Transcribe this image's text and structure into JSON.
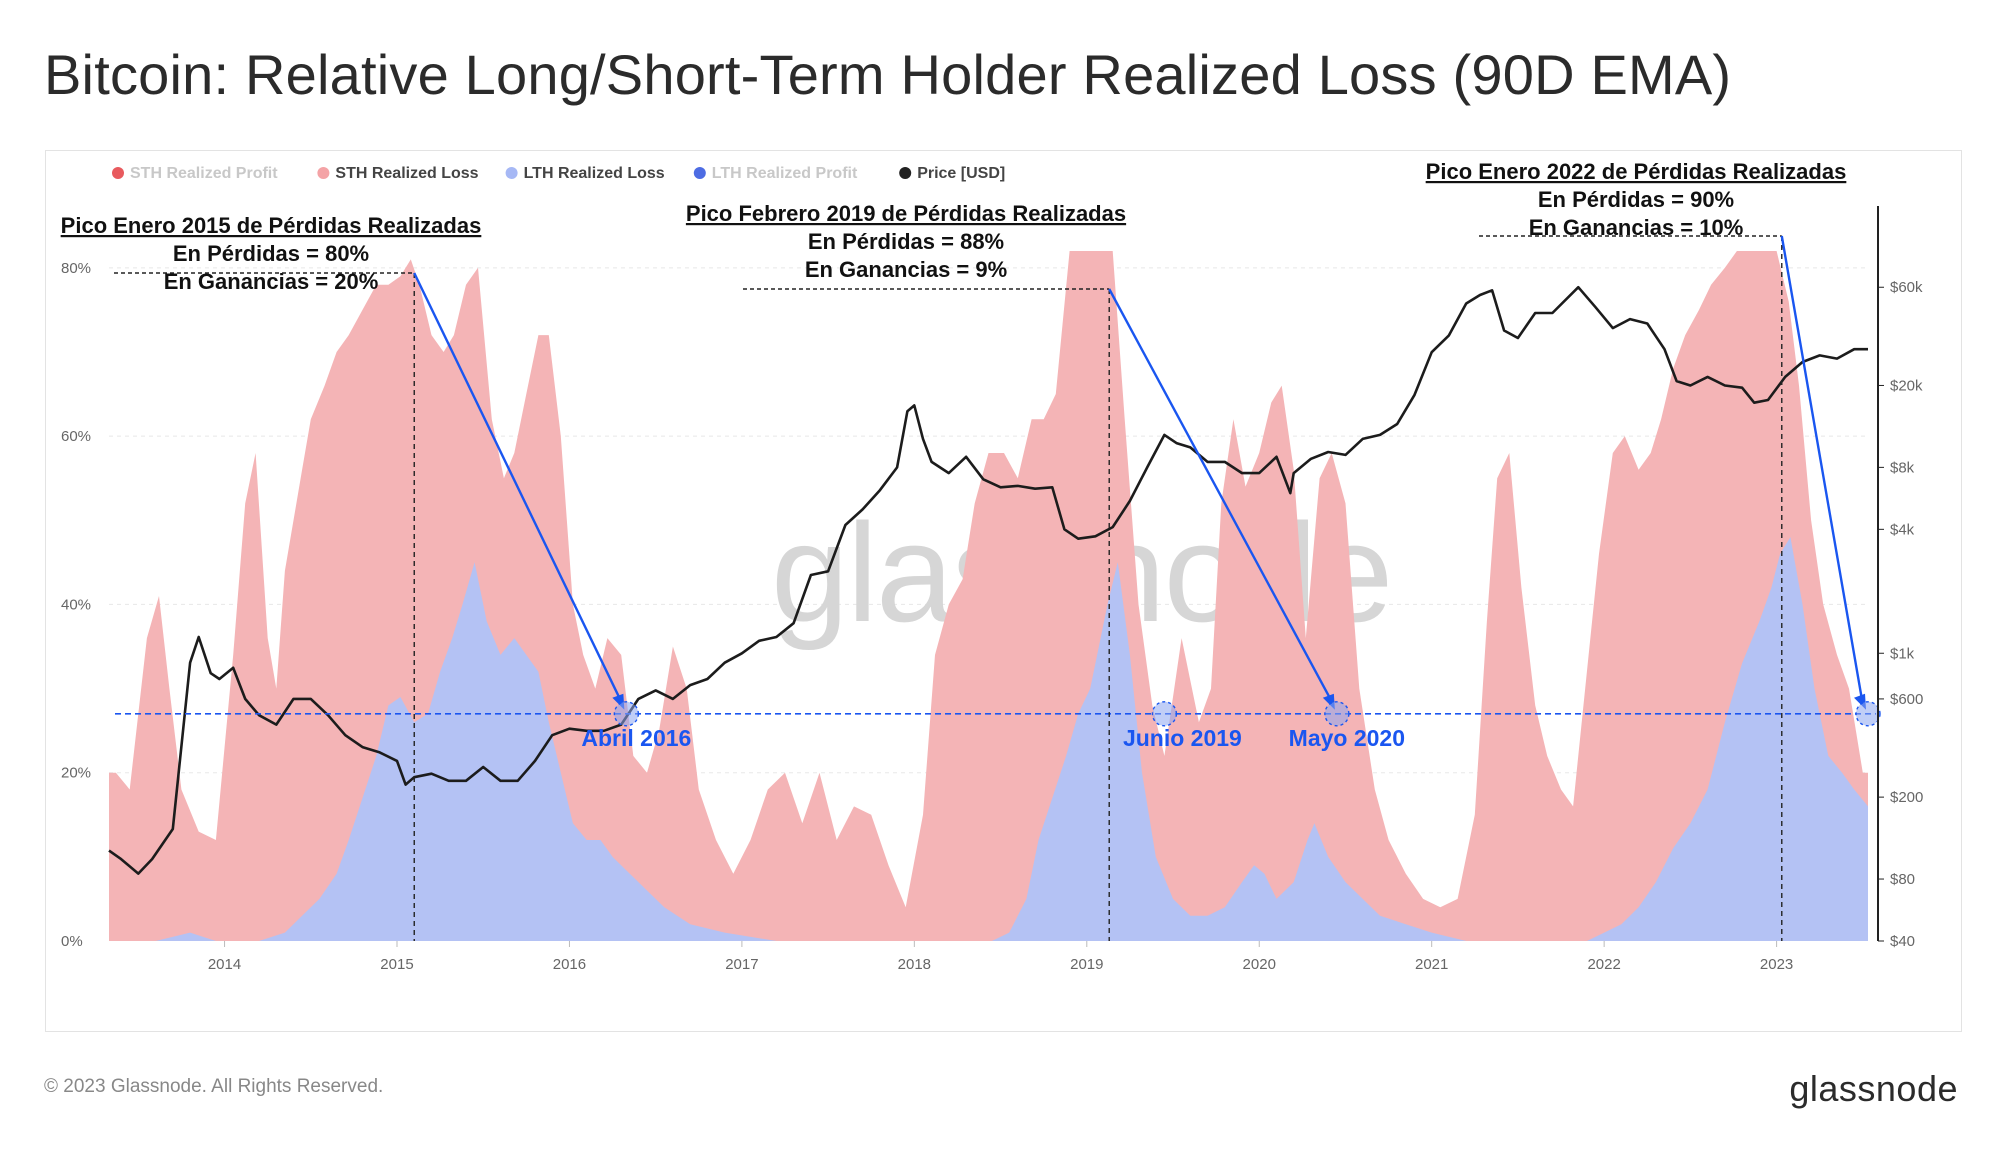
{
  "title": "Bitcoin: Relative Long/Short-Term Holder Realized Loss (90D EMA)",
  "footer": "© 2023 Glassnode. All Rights Reserved.",
  "brand": "glassnode",
  "watermark": "glassnode",
  "colors": {
    "sth_loss": "#f4b4b6",
    "lth_loss": "#b4c2f4",
    "price": "#1c1c1c",
    "annotation_arrow": "#1a56f0"
  },
  "chart_data": {
    "type": "area",
    "legend": [
      {
        "name": "STH Realized Profit",
        "color": "#e5484d",
        "active": false
      },
      {
        "name": "STH Realized Loss",
        "color": "#f4a3a6",
        "active": true
      },
      {
        "name": "LTH Realized Loss",
        "color": "#a6b8f5",
        "active": true
      },
      {
        "name": "LTH Realized Profit",
        "color": "#3a5ce0",
        "active": false
      },
      {
        "name": "Price [USD]",
        "color": "#222222",
        "active": true
      }
    ],
    "x_ticks": [
      "2014",
      "2015",
      "2016",
      "2017",
      "2018",
      "2019",
      "2020",
      "2021",
      "2022",
      "2023"
    ],
    "x_range": [
      2013.33,
      2023.53
    ],
    "y_left": {
      "ticks": [
        "0%",
        "20%",
        "40%",
        "60%",
        "80%"
      ],
      "range": [
        0,
        0.82
      ]
    },
    "y_right": {
      "ticks": [
        "$40",
        "$80",
        "$200",
        "$600",
        "$1k",
        "$4k",
        "$8k",
        "$20k",
        "$60k"
      ],
      "scale": "log",
      "range": [
        40,
        90000
      ]
    },
    "series": [
      {
        "name": "STH Realized Loss",
        "x": [
          2013.33,
          2013.37,
          2013.45,
          2013.55,
          2013.62,
          2013.68,
          2013.75,
          2013.85,
          2013.95,
          2014.05,
          2014.12,
          2014.18,
          2014.25,
          2014.3,
          2014.35,
          2014.4,
          2014.45,
          2014.5,
          2014.58,
          2014.65,
          2014.72,
          2014.8,
          2014.88,
          2014.95,
          2015.02,
          2015.08,
          2015.13,
          2015.2,
          2015.27,
          2015.33,
          2015.4,
          2015.47,
          2015.55,
          2015.62,
          2015.68,
          2015.75,
          2015.82,
          2015.88,
          2015.95,
          2016.02,
          2016.08,
          2016.15,
          2016.22,
          2016.3,
          2016.37,
          2016.45,
          2016.52,
          2016.6,
          2016.68,
          2016.75,
          2016.85,
          2016.95,
          2017.05,
          2017.15,
          2017.25,
          2017.35,
          2017.45,
          2017.55,
          2017.65,
          2017.75,
          2017.85,
          2017.95,
          2018.05,
          2018.12,
          2018.2,
          2018.28,
          2018.35,
          2018.43,
          2018.52,
          2018.6,
          2018.68,
          2018.75,
          2018.82,
          2018.9,
          2018.97,
          2019.03,
          2019.1,
          2019.15,
          2019.22,
          2019.3,
          2019.38,
          2019.45,
          2019.55,
          2019.65,
          2019.72,
          2019.78,
          2019.85,
          2019.92,
          2020.0,
          2020.07,
          2020.13,
          2020.2,
          2020.27,
          2020.35,
          2020.42,
          2020.5,
          2020.58,
          2020.67,
          2020.75,
          2020.85,
          2020.95,
          2021.05,
          2021.15,
          2021.25,
          2021.32,
          2021.38,
          2021.45,
          2021.52,
          2021.6,
          2021.67,
          2021.75,
          2021.82,
          2021.9,
          2021.97,
          2022.05,
          2022.12,
          2022.2,
          2022.27,
          2022.33,
          2022.4,
          2022.47,
          2022.55,
          2022.62,
          2022.7,
          2022.77,
          2022.85,
          2022.93,
          2023.0,
          2023.07,
          2023.13,
          2023.2,
          2023.27,
          2023.35,
          2023.42,
          2023.5,
          2023.53
        ],
        "values": [
          0.2,
          0.2,
          0.18,
          0.36,
          0.41,
          0.3,
          0.18,
          0.13,
          0.12,
          0.34,
          0.52,
          0.58,
          0.36,
          0.3,
          0.44,
          0.5,
          0.56,
          0.62,
          0.66,
          0.7,
          0.72,
          0.75,
          0.78,
          0.78,
          0.79,
          0.81,
          0.78,
          0.72,
          0.7,
          0.72,
          0.78,
          0.8,
          0.62,
          0.55,
          0.58,
          0.65,
          0.72,
          0.72,
          0.6,
          0.4,
          0.34,
          0.3,
          0.36,
          0.34,
          0.22,
          0.2,
          0.25,
          0.35,
          0.3,
          0.18,
          0.12,
          0.08,
          0.12,
          0.18,
          0.2,
          0.14,
          0.2,
          0.12,
          0.16,
          0.15,
          0.09,
          0.04,
          0.15,
          0.34,
          0.4,
          0.43,
          0.52,
          0.58,
          0.58,
          0.55,
          0.62,
          0.62,
          0.65,
          0.82,
          0.85,
          0.88,
          0.87,
          0.84,
          0.62,
          0.4,
          0.28,
          0.22,
          0.36,
          0.26,
          0.3,
          0.52,
          0.62,
          0.54,
          0.58,
          0.64,
          0.66,
          0.56,
          0.36,
          0.55,
          0.58,
          0.52,
          0.3,
          0.18,
          0.12,
          0.08,
          0.05,
          0.04,
          0.05,
          0.15,
          0.38,
          0.55,
          0.58,
          0.42,
          0.28,
          0.22,
          0.18,
          0.16,
          0.32,
          0.46,
          0.58,
          0.6,
          0.56,
          0.58,
          0.62,
          0.68,
          0.72,
          0.75,
          0.78,
          0.8,
          0.85,
          0.88,
          0.9,
          0.86,
          0.76,
          0.66,
          0.5,
          0.4,
          0.34,
          0.3,
          0.2,
          0.2
        ]
      },
      {
        "name": "LTH Realized Loss",
        "x": [
          2013.33,
          2013.6,
          2013.8,
          2013.95,
          2014.2,
          2014.35,
          2014.45,
          2014.55,
          2014.65,
          2014.72,
          2014.8,
          2014.88,
          2014.95,
          2015.02,
          2015.1,
          2015.18,
          2015.25,
          2015.32,
          2015.38,
          2015.45,
          2015.52,
          2015.6,
          2015.68,
          2015.75,
          2015.82,
          2015.88,
          2015.95,
          2016.02,
          2016.1,
          2016.18,
          2016.25,
          2016.35,
          2016.45,
          2016.55,
          2016.7,
          2016.9,
          2017.2,
          2017.5,
          2017.8,
          2018.1,
          2018.25,
          2018.35,
          2018.45,
          2018.55,
          2018.65,
          2018.72,
          2018.8,
          2018.88,
          2018.95,
          2019.02,
          2019.08,
          2019.12,
          2019.18,
          2019.25,
          2019.32,
          2019.4,
          2019.5,
          2019.6,
          2019.7,
          2019.8,
          2019.9,
          2019.97,
          2020.03,
          2020.1,
          2020.2,
          2020.28,
          2020.32,
          2020.4,
          2020.5,
          2020.6,
          2020.7,
          2020.85,
          2021.0,
          2021.2,
          2021.4,
          2021.6,
          2021.75,
          2021.9,
          2022.0,
          2022.1,
          2022.2,
          2022.3,
          2022.4,
          2022.5,
          2022.6,
          2022.7,
          2022.8,
          2022.9,
          2022.97,
          2023.02,
          2023.08,
          2023.15,
          2023.22,
          2023.3,
          2023.38,
          2023.45,
          2023.53
        ],
        "values": [
          0.0,
          0.0,
          0.01,
          0.0,
          0.0,
          0.01,
          0.03,
          0.05,
          0.08,
          0.12,
          0.17,
          0.22,
          0.28,
          0.29,
          0.26,
          0.27,
          0.32,
          0.36,
          0.4,
          0.45,
          0.38,
          0.34,
          0.36,
          0.34,
          0.32,
          0.26,
          0.2,
          0.14,
          0.12,
          0.12,
          0.1,
          0.08,
          0.06,
          0.04,
          0.02,
          0.01,
          0.0,
          0.0,
          0.0,
          0.0,
          0.0,
          0.0,
          0.0,
          0.01,
          0.05,
          0.12,
          0.17,
          0.22,
          0.27,
          0.3,
          0.36,
          0.4,
          0.45,
          0.34,
          0.2,
          0.1,
          0.05,
          0.03,
          0.03,
          0.04,
          0.07,
          0.09,
          0.08,
          0.05,
          0.07,
          0.12,
          0.14,
          0.1,
          0.07,
          0.05,
          0.03,
          0.02,
          0.01,
          0.0,
          0.0,
          0.0,
          0.0,
          0.0,
          0.01,
          0.02,
          0.04,
          0.07,
          0.11,
          0.14,
          0.18,
          0.26,
          0.33,
          0.38,
          0.42,
          0.46,
          0.48,
          0.4,
          0.3,
          0.22,
          0.2,
          0.18,
          0.16
        ]
      },
      {
        "name": "Price [USD]",
        "x": [
          2013.33,
          2013.4,
          2013.5,
          2013.58,
          2013.7,
          2013.8,
          2013.85,
          2013.92,
          2013.97,
          2014.05,
          2014.12,
          2014.2,
          2014.3,
          2014.4,
          2014.5,
          2014.6,
          2014.7,
          2014.8,
          2014.9,
          2015.0,
          2015.05,
          2015.1,
          2015.2,
          2015.3,
          2015.4,
          2015.5,
          2015.6,
          2015.7,
          2015.8,
          2015.9,
          2016.0,
          2016.1,
          2016.2,
          2016.3,
          2016.4,
          2016.5,
          2016.6,
          2016.7,
          2016.8,
          2016.9,
          2017.0,
          2017.1,
          2017.2,
          2017.3,
          2017.4,
          2017.5,
          2017.6,
          2017.7,
          2017.8,
          2017.9,
          2017.96,
          2018.0,
          2018.05,
          2018.1,
          2018.2,
          2018.3,
          2018.4,
          2018.5,
          2018.6,
          2018.7,
          2018.8,
          2018.87,
          2018.95,
          2019.05,
          2019.15,
          2019.25,
          2019.35,
          2019.45,
          2019.52,
          2019.6,
          2019.7,
          2019.8,
          2019.9,
          2020.0,
          2020.1,
          2020.18,
          2020.2,
          2020.3,
          2020.4,
          2020.5,
          2020.6,
          2020.7,
          2020.8,
          2020.9,
          2021.0,
          2021.1,
          2021.2,
          2021.28,
          2021.35,
          2021.42,
          2021.5,
          2021.6,
          2021.7,
          2021.85,
          2021.95,
          2022.05,
          2022.15,
          2022.25,
          2022.35,
          2022.42,
          2022.5,
          2022.6,
          2022.7,
          2022.8,
          2022.87,
          2022.95,
          2023.05,
          2023.15,
          2023.25,
          2023.35,
          2023.45,
          2023.53
        ],
        "values": [
          110,
          100,
          85,
          100,
          140,
          900,
          1200,
          800,
          750,
          850,
          600,
          500,
          450,
          600,
          600,
          500,
          400,
          350,
          330,
          300,
          230,
          250,
          260,
          240,
          240,
          280,
          240,
          240,
          300,
          400,
          430,
          420,
          420,
          450,
          600,
          660,
          600,
          700,
          750,
          900,
          1000,
          1150,
          1200,
          1400,
          2400,
          2500,
          4200,
          5000,
          6200,
          8000,
          15000,
          16000,
          11000,
          8500,
          7500,
          9000,
          7000,
          6400,
          6500,
          6300,
          6400,
          4000,
          3600,
          3700,
          4100,
          5500,
          8000,
          11500,
          10500,
          10000,
          8500,
          8500,
          7500,
          7500,
          9000,
          6000,
          7500,
          8800,
          9500,
          9200,
          11000,
          11500,
          13000,
          18000,
          29000,
          35000,
          50000,
          55000,
          58000,
          37000,
          34000,
          45000,
          45000,
          60000,
          48000,
          38000,
          42000,
          40000,
          30000,
          21000,
          20000,
          22000,
          20000,
          19500,
          16500,
          17000,
          22000,
          26000,
          28000,
          27000,
          30000,
          30000
        ]
      }
    ],
    "annotations": [
      {
        "title": "Pico Enero 2015 de Pérdidas Realizadas",
        "line1": "En Pérdidas = 80%",
        "line2": "En Ganancias = 20%",
        "x": 2015.1,
        "target_x": 2016.33,
        "target_label": "Abril 2016"
      },
      {
        "title": "Pico Febrero 2019 de Pérdidas Realizadas",
        "line1": "En Pérdidas = 88%",
        "line2": "En Ganancias = 9%",
        "x": 2019.13,
        "target_x": 2020.45,
        "target_label": "Mayo 2020"
      },
      {
        "title": "Pico Enero 2022 de Pérdidas Realizadas",
        "line1": "En Pérdidas = 90%",
        "line2": "En Ganancias = 10%",
        "x": 2023.03,
        "target_x": 2023.53,
        "target_label": ""
      }
    ],
    "extra_label": {
      "text": "Junio 2019",
      "x": 2019.45
    },
    "threshold_level": 0.27
  }
}
